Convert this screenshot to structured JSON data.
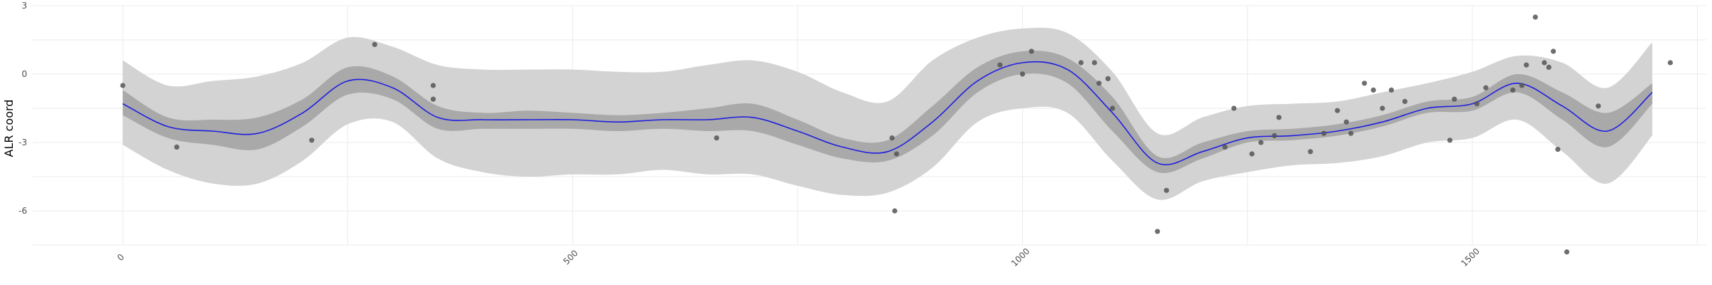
{
  "chart_data": {
    "type": "line",
    "title": "",
    "xlabel": "",
    "ylabel": "ALR coord",
    "xlim": [
      -100,
      1760
    ],
    "ylim": [
      -7.5,
      3
    ],
    "x_ticks": [
      0,
      500,
      1000,
      1500
    ],
    "x_tick_labels": [
      "0",
      "500",
      "1000",
      "1500"
    ],
    "y_ticks": [
      -6,
      -3,
      0,
      3
    ],
    "y_tick_labels": [
      "-6",
      "-3",
      "0",
      "3"
    ],
    "grid": true,
    "legend": "none",
    "colors": {
      "line": "#1f1fe0",
      "outer_band": "#d3d3d3",
      "inner_band": "#a9a9a9",
      "points": "#555555",
      "grid": "#ebebeb"
    },
    "series": [
      {
        "role": "fitted-curve",
        "x": [
          0,
          50,
          100,
          150,
          200,
          250,
          300,
          350,
          400,
          450,
          500,
          550,
          600,
          650,
          700,
          750,
          800,
          850,
          900,
          950,
          1000,
          1050,
          1100,
          1150,
          1200,
          1250,
          1300,
          1350,
          1400,
          1450,
          1500,
          1550,
          1600,
          1650,
          1700
        ],
        "y": [
          -1.3,
          -2.3,
          -2.5,
          -2.6,
          -1.7,
          -0.3,
          -0.6,
          -1.9,
          -2.0,
          -2.0,
          -2.0,
          -2.1,
          -2.0,
          -2.0,
          -1.9,
          -2.5,
          -3.2,
          -3.4,
          -2.1,
          -0.3,
          0.5,
          0.2,
          -1.7,
          -3.9,
          -3.4,
          -2.8,
          -2.7,
          -2.5,
          -2.1,
          -1.5,
          -1.3,
          -0.4,
          -1.4,
          -2.5,
          -0.8
        ]
      },
      {
        "role": "inner-band",
        "x": [
          0,
          50,
          100,
          150,
          200,
          250,
          300,
          350,
          400,
          450,
          500,
          550,
          600,
          650,
          700,
          750,
          800,
          850,
          900,
          950,
          1000,
          1050,
          1100,
          1150,
          1200,
          1250,
          1300,
          1350,
          1400,
          1450,
          1500,
          1550,
          1600,
          1650,
          1700
        ],
        "lower": [
          -1.8,
          -2.8,
          -3.1,
          -3.3,
          -2.3,
          -0.9,
          -1.1,
          -2.4,
          -2.4,
          -2.4,
          -2.4,
          -2.5,
          -2.4,
          -2.5,
          -2.5,
          -3.1,
          -3.7,
          -3.8,
          -2.7,
          -0.8,
          0.0,
          -0.4,
          -2.5,
          -4.3,
          -3.7,
          -3.0,
          -2.9,
          -2.7,
          -2.3,
          -1.7,
          -1.6,
          -0.8,
          -2.0,
          -3.2,
          -1.3
        ],
        "upper": [
          -0.7,
          -1.9,
          -2.0,
          -1.9,
          -1.1,
          0.3,
          -0.1,
          -1.4,
          -1.7,
          -1.6,
          -1.7,
          -1.8,
          -1.7,
          -1.5,
          -1.3,
          -2.0,
          -2.8,
          -2.9,
          -1.4,
          0.3,
          1.0,
          0.7,
          -1.0,
          -3.6,
          -3.0,
          -2.5,
          -2.4,
          -2.2,
          -1.8,
          -1.2,
          -1.0,
          0.0,
          -0.8,
          -1.7,
          -0.4
        ]
      },
      {
        "role": "outer-band",
        "x": [
          0,
          50,
          100,
          150,
          200,
          250,
          300,
          350,
          400,
          450,
          500,
          550,
          600,
          650,
          700,
          750,
          800,
          850,
          900,
          950,
          1000,
          1050,
          1100,
          1150,
          1200,
          1250,
          1300,
          1350,
          1400,
          1450,
          1500,
          1550,
          1600,
          1650,
          1700
        ],
        "lower": [
          -3.1,
          -4.2,
          -4.8,
          -4.8,
          -3.8,
          -2.2,
          -2.1,
          -3.7,
          -4.3,
          -4.5,
          -4.4,
          -4.4,
          -4.2,
          -4.4,
          -4.4,
          -4.9,
          -5.3,
          -5.2,
          -4.1,
          -2.1,
          -1.5,
          -1.7,
          -3.8,
          -5.5,
          -4.7,
          -4.3,
          -4.0,
          -3.9,
          -3.6,
          -3.0,
          -2.8,
          -2.0,
          -3.4,
          -4.8,
          -2.7
        ],
        "upper": [
          0.6,
          -0.5,
          -0.3,
          -0.1,
          0.5,
          1.6,
          1.2,
          0.4,
          0.2,
          0.2,
          0.2,
          0.1,
          0.1,
          0.4,
          0.6,
          0.1,
          -0.8,
          -1.2,
          0.6,
          1.6,
          2.0,
          1.8,
          0.1,
          -2.6,
          -1.9,
          -1.4,
          -1.3,
          -1.2,
          -0.8,
          -0.4,
          0.1,
          0.8,
          0.5,
          -0.6,
          1.4
        ]
      },
      {
        "role": "observations",
        "x": [
          0,
          60,
          210,
          280,
          345,
          345,
          660,
          855,
          860,
          858,
          975,
          1000,
          1010,
          1065,
          1080,
          1085,
          1095,
          1100,
          1150,
          1160,
          1225,
          1235,
          1255,
          1265,
          1280,
          1285,
          1320,
          1335,
          1350,
          1360,
          1365,
          1380,
          1390,
          1400,
          1410,
          1425,
          1475,
          1480,
          1505,
          1515,
          1545,
          1555,
          1560,
          1570,
          1580,
          1585,
          1590,
          1595,
          1605,
          1640,
          1720
        ],
        "y": [
          -0.5,
          -3.2,
          -2.9,
          1.3,
          -0.5,
          -1.1,
          -2.8,
          -2.8,
          -3.5,
          -6.0,
          0.4,
          0.0,
          1.0,
          0.5,
          0.5,
          -0.4,
          -0.2,
          -1.5,
          -6.9,
          -5.1,
          -3.2,
          -1.5,
          -3.5,
          -3.0,
          -2.7,
          -1.9,
          -3.4,
          -2.6,
          -1.6,
          -2.1,
          -2.6,
          -0.4,
          -0.7,
          -1.5,
          -0.7,
          -1.2,
          -2.9,
          -1.1,
          -1.3,
          -0.6,
          -0.7,
          -0.5,
          0.4,
          2.5,
          0.5,
          0.3,
          1.0,
          -3.3,
          -7.8,
          -1.4,
          0.5
        ]
      }
    ]
  }
}
